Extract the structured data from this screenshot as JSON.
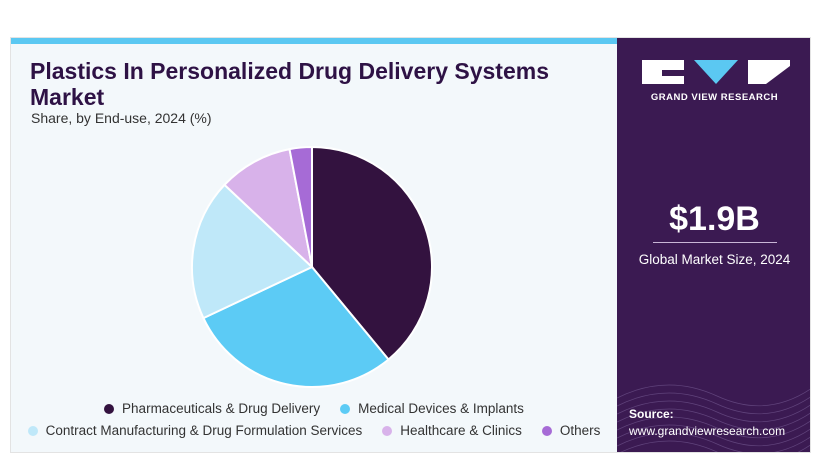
{
  "header": {
    "title": "Plastics In Personalized Drug Delivery Systems Market",
    "subtitle": "Share, by End-use, 2024 (%)"
  },
  "sidebar": {
    "brand": "GRAND VIEW RESEARCH",
    "market_size_value": "$1.9B",
    "market_size_caption": "Global Market Size, 2024",
    "source_label": "Source:",
    "source_url": "www.grandviewresearch.com"
  },
  "chart_data": {
    "type": "pie",
    "title": "Plastics In Personalized Drug Delivery Systems Market",
    "subtitle": "Share, by End-use, 2024 (%)",
    "legend_position": "bottom",
    "categories": [
      "Pharmaceuticals & Drug Delivery",
      "Medical Devices & Implants",
      "Contract Manufacturing & Drug Formulation Services",
      "Healthcare & Clinics",
      "Others"
    ],
    "values": [
      39,
      29,
      19,
      10,
      3
    ],
    "colors": [
      "#33123f",
      "#5ccbf5",
      "#bfe8f9",
      "#d8b2ea",
      "#a66bd6"
    ]
  }
}
